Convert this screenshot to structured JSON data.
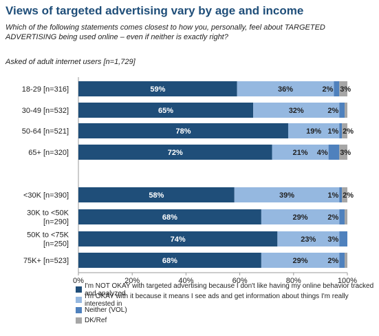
{
  "header": {
    "title": "Views of targeted advertising vary by age and income",
    "subtitle": "Which of the following statements comes closest to how you, personally, feel about TARGETED ADVERTISING being used online – even if neither is exactly right?",
    "note": "Asked of adult internet users [n=1,729]"
  },
  "colors": {
    "not_okay": "#1f4e79",
    "okay": "#95b8e0",
    "neither": "#4f81bd",
    "dk": "#a6a6a6"
  },
  "chart_data": {
    "type": "bar",
    "orientation": "horizontal",
    "stacked": true,
    "xlim": [
      0,
      100
    ],
    "x_ticks": [
      "0%",
      "20%",
      "40%",
      "60%",
      "80%",
      "100%"
    ],
    "groups": [
      {
        "rows": [
          {
            "label_lines": [
              "18-29 [n=316]"
            ],
            "values": [
              59,
              36,
              2,
              3
            ],
            "labels": [
              "59%",
              "36%",
              "2%",
              "3%"
            ]
          },
          {
            "label_lines": [
              "30-49 [n=532]"
            ],
            "values": [
              65,
              32,
              2,
              1
            ],
            "labels": [
              "65%",
              "32%",
              "2%",
              ""
            ]
          },
          {
            "label_lines": [
              "50-64 [n=521]"
            ],
            "values": [
              78,
              19,
              1,
              2
            ],
            "labels": [
              "78%",
              "19%",
              "1%",
              "2%"
            ]
          },
          {
            "label_lines": [
              "65+ [n=320]"
            ],
            "values": [
              72,
              21,
              4,
              3
            ],
            "labels": [
              "72%",
              "21%",
              "4%",
              "3%"
            ]
          }
        ]
      },
      {
        "rows": [
          {
            "label_lines": [
              "<30K [n=390]"
            ],
            "values": [
              58,
              39,
              1,
              2
            ],
            "labels": [
              "58%",
              "39%",
              "1%",
              "2%"
            ]
          },
          {
            "label_lines": [
              "30K to <50K",
              "[n=290]"
            ],
            "values": [
              68,
              29,
              2,
              1
            ],
            "labels": [
              "68%",
              "29%",
              "2%",
              ""
            ]
          },
          {
            "label_lines": [
              "50K to <75K",
              "[n=250]"
            ],
            "values": [
              74,
              23,
              3,
              0
            ],
            "labels": [
              "74%",
              "23%",
              "3%",
              ""
            ]
          },
          {
            "label_lines": [
              "75K+ [n=523]"
            ],
            "values": [
              68,
              29,
              2,
              1
            ],
            "labels": [
              "68%",
              "29%",
              "2%",
              ""
            ]
          }
        ]
      }
    ],
    "legend": [
      "I'm NOT OKAY with targeted advertising because I don't like having my online behavior tracked and analyzed",
      "I'm OKAY with it because it means I see ads and get information about things I'm really interested in",
      "Neither (VOL)",
      "DK/Ref"
    ]
  }
}
